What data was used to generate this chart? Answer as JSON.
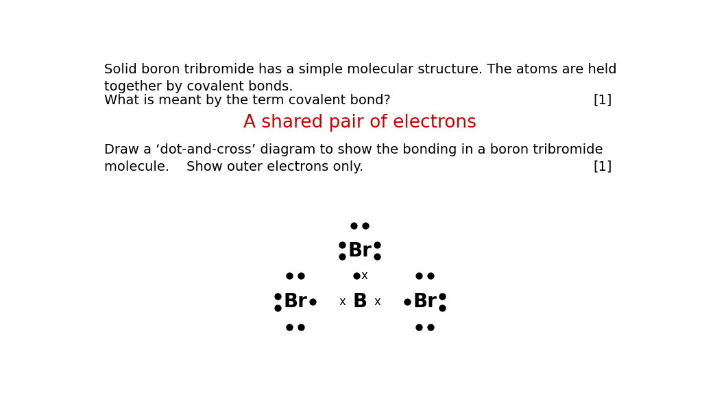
{
  "text_lines": [
    "Solid boron tribromide has a simple molecular structure. The atoms are held",
    "together by covalent bonds.",
    "What is meant by the term covalent bond?"
  ],
  "mark1": "[1]",
  "answer_text": "A shared pair of electrons",
  "question2_lines": [
    "Draw a ‘dot-and-cross’ diagram to show the bonding in a boron tribromide",
    "molecule.    Show outer electrons only."
  ],
  "mark2": "[1]",
  "answer_color": "#cc0000",
  "text_color": "#000000",
  "bg_color": "#ffffff",
  "font_size_body": 14,
  "font_size_answer": 19
}
